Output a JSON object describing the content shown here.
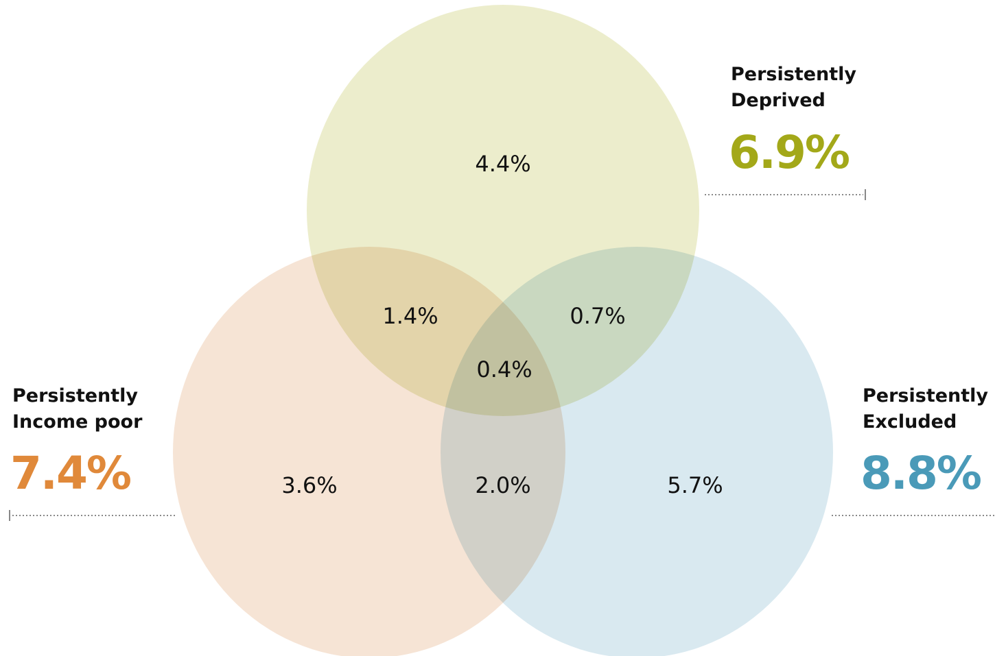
{
  "chart_data": {
    "type": "venn",
    "sets": [
      {
        "name": "Persistently\nDeprived",
        "value": 6.9,
        "value_label": "6.9%",
        "color": "#a3a819",
        "fill": "#ecedcc"
      },
      {
        "name": "Persistently\nIncome poor",
        "value": 7.4,
        "value_label": "7.4%",
        "color": "#e0893a",
        "fill": "#f6e4d5"
      },
      {
        "name": "Persistently\nExcluded",
        "value": 8.8,
        "value_label": "8.8%",
        "color": "#4a9ab8",
        "fill": "#d9e9f0"
      }
    ],
    "regions": {
      "values": [
        4.4,
        1.4,
        0.7,
        0.4,
        3.6,
        2.0,
        5.7
      ],
      "value_labels": [
        "4.4%",
        "1.4%",
        "0.7%",
        "0.4%",
        "3.6%",
        "2.0%",
        "5.7%"
      ]
    }
  }
}
